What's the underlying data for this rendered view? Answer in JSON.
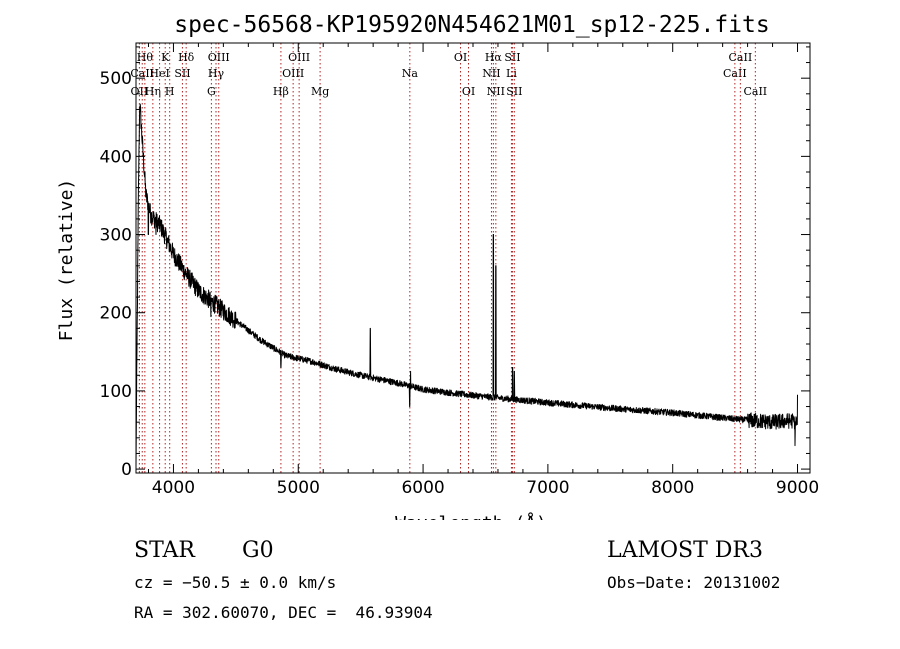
{
  "chart_data": {
    "type": "line",
    "title": "spec-56568-KP195920N454621M01_sp12-225.fits",
    "xlabel": "Wavelength (Å)",
    "ylabel": "Flux (relative)",
    "xlim": [
      3700,
      9100
    ],
    "ylim": [
      -5,
      545
    ],
    "x_ticks": [
      4000,
      5000,
      6000,
      7000,
      8000,
      9000
    ],
    "y_ticks": [
      0,
      100,
      200,
      300,
      400,
      500
    ],
    "x_minor_step": 200,
    "y_minor_step": 20,
    "continuum_anchors": [
      {
        "x": 3700,
        "y": 0
      },
      {
        "x": 3708,
        "y": 150
      },
      {
        "x": 3720,
        "y": 360
      },
      {
        "x": 3730,
        "y": 470
      },
      {
        "x": 3750,
        "y": 420
      },
      {
        "x": 3780,
        "y": 350
      },
      {
        "x": 3820,
        "y": 325
      },
      {
        "x": 3900,
        "y": 310
      },
      {
        "x": 4000,
        "y": 275
      },
      {
        "x": 4100,
        "y": 250
      },
      {
        "x": 4200,
        "y": 228
      },
      {
        "x": 4300,
        "y": 215
      },
      {
        "x": 4500,
        "y": 190
      },
      {
        "x": 4700,
        "y": 165
      },
      {
        "x": 4900,
        "y": 145
      },
      {
        "x": 5100,
        "y": 138
      },
      {
        "x": 5300,
        "y": 128
      },
      {
        "x": 5500,
        "y": 120
      },
      {
        "x": 5800,
        "y": 110
      },
      {
        "x": 6000,
        "y": 102
      },
      {
        "x": 6300,
        "y": 96
      },
      {
        "x": 6600,
        "y": 91
      },
      {
        "x": 7000,
        "y": 85
      },
      {
        "x": 7500,
        "y": 78
      },
      {
        "x": 8000,
        "y": 72
      },
      {
        "x": 8500,
        "y": 64
      },
      {
        "x": 8800,
        "y": 60
      },
      {
        "x": 8950,
        "y": 62
      },
      {
        "x": 9000,
        "y": 60
      }
    ],
    "spectral_features": [
      {
        "x": 3799,
        "y": 300
      },
      {
        "x": 3860,
        "y": 300
      },
      {
        "x": 4300,
        "y": 195
      },
      {
        "x": 4861,
        "y": 130
      },
      {
        "x": 5577,
        "y": 50
      },
      {
        "x": 5577,
        "y": 180
      },
      {
        "x": 5893,
        "y": 80
      },
      {
        "x": 5900,
        "y": 125
      },
      {
        "x": 6563,
        "y": 300
      },
      {
        "x": 6583,
        "y": 260
      },
      {
        "x": 6717,
        "y": 130
      },
      {
        "x": 6731,
        "y": 125
      },
      {
        "x": 8980,
        "y": 30
      },
      {
        "x": 9000,
        "y": 95
      }
    ],
    "noise_amplitude": 4,
    "line_markers": [
      {
        "x": 3727,
        "labels": [
          "OII"
        ],
        "row": 3
      },
      {
        "x": 3750,
        "labels": [
          "CaII"
        ],
        "row": 2
      },
      {
        "x": 3771,
        "labels": [
          "Hθ"
        ],
        "row": 1
      },
      {
        "x": 3835,
        "labels": [
          "Hη"
        ],
        "row": 3
      },
      {
        "x": 3889,
        "labels": [
          "HeI"
        ],
        "row": 2
      },
      {
        "x": 3934,
        "labels": [
          "K"
        ],
        "row": 1
      },
      {
        "x": 3970,
        "labels": [
          "H"
        ],
        "row": 3
      },
      {
        "x": 4072,
        "labels": [
          "SII"
        ],
        "row": 2
      },
      {
        "x": 4102,
        "labels": [
          "Hδ"
        ],
        "row": 1
      },
      {
        "x": 4304,
        "labels": [
          "G"
        ],
        "row": 3
      },
      {
        "x": 4341,
        "labels": [
          "Hγ"
        ],
        "row": 2
      },
      {
        "x": 4363,
        "labels": [
          "OIII"
        ],
        "row": 1
      },
      {
        "x": 4861,
        "labels": [
          "Hβ"
        ],
        "row": 3
      },
      {
        "x": 4959,
        "labels": [
          "OIII"
        ],
        "row": 2
      },
      {
        "x": 5007,
        "labels": [
          "OIII"
        ],
        "row": 1
      },
      {
        "x": 5175,
        "labels": [
          "Mg"
        ],
        "row": 3
      },
      {
        "x": 5894,
        "labels": [
          "Na"
        ],
        "row": 2
      },
      {
        "x": 6300,
        "labels": [
          "OI"
        ],
        "row": 1
      },
      {
        "x": 6364,
        "labels": [
          "OI"
        ],
        "row": 3
      },
      {
        "x": 6548,
        "labels": [
          "NII"
        ],
        "row": 2
      },
      {
        "x": 6563,
        "labels": [
          "Hα"
        ],
        "row": 1
      },
      {
        "x": 6583,
        "labels": [
          "NII"
        ],
        "row": 3
      },
      {
        "x": 6708,
        "labels": [
          "Li"
        ],
        "row": 2
      },
      {
        "x": 6716,
        "labels": [
          "SII"
        ],
        "row": 1
      },
      {
        "x": 6731,
        "labels": [
          "SII"
        ],
        "row": 3
      },
      {
        "x": 8498,
        "labels": [
          "CaII"
        ],
        "row": 2
      },
      {
        "x": 8542,
        "labels": [
          "CaII"
        ],
        "row": 1
      },
      {
        "x": 8662,
        "labels": [
          "CaII"
        ],
        "row": 3
      }
    ]
  },
  "info": {
    "object_class": "STAR",
    "subclass": "G0",
    "survey": "LAMOST DR3",
    "cz": "cz = −50.5 ± 0.0 km/s",
    "obs_date": "Obs−Date: 20131002",
    "coords": "RA = 302.60070, DEC =  46.93904"
  },
  "colors": {
    "spectrum": "#000000",
    "marker_line": "#b22222",
    "axis": "#000000",
    "background": "#ffffff"
  }
}
